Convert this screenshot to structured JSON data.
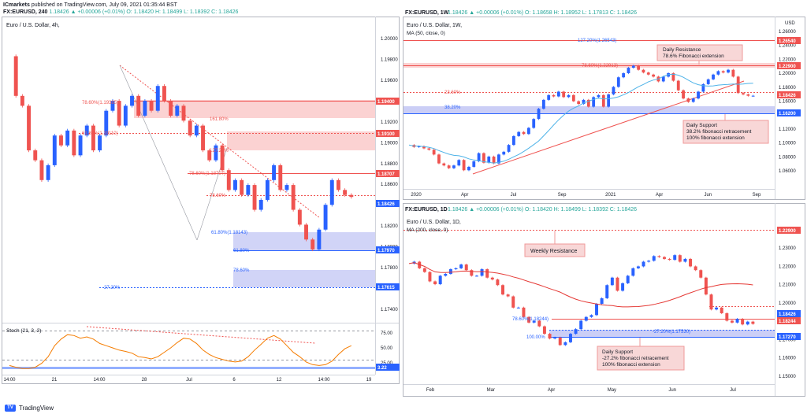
{
  "header": {
    "brand": "ICmarkets",
    "published": "published on TradingView.com, July 09, 2021 01:35:44 BST",
    "symbol_line": "FX:EURUSD, 240",
    "ohlc": "1.18426 ▲ +0.00006 (+0.01%) O: 1.18420 H: 1.18499 L: 1.18392 C: 1.18426"
  },
  "footer": {
    "logo": "TV",
    "label": "TradingView"
  },
  "panels": {
    "left": {
      "title": "Euro / U.S. Dollar, 4h,",
      "x_ticks": [
        "14:00",
        "21",
        "14:00",
        "28",
        "Jul",
        "6",
        "12",
        "14:00",
        "19"
      ],
      "y_ticks": [
        "1.20000",
        "1.19800",
        "1.19600",
        "1.19400",
        "1.19200",
        "1.19000",
        "1.18800",
        "1.18600",
        "1.18400",
        "1.18200",
        "1.18000",
        "1.17800",
        "1.17600",
        "1.17400"
      ],
      "price_tags": [
        {
          "value": "1.19400",
          "color": "#ef5350"
        },
        {
          "value": "1.19100",
          "color": "#ef5350"
        },
        {
          "value": "1.18707",
          "color": "#ef5350"
        },
        {
          "value": "1.18426",
          "color": "#2962ff"
        },
        {
          "value": "1.17970",
          "color": "#2962ff"
        },
        {
          "value": "1.17615",
          "color": "#2962ff"
        }
      ],
      "fib_labels": [
        "78.60%(1.19385)",
        "161.80%",
        "61.80%(1.19110)",
        "127.20%",
        "78.60%(1.18707)",
        "78.60%",
        "61.80%(1.18143)",
        "61.80%",
        "78.60%",
        "-27.20%"
      ],
      "stoch": {
        "label": "Stoch (21, 3, 3)",
        "y_ticks": [
          "75.00",
          "50.00",
          "25.00"
        ],
        "tag": "3.22"
      }
    },
    "top_right": {
      "symbol_line": "FX:EURUSD, 1W",
      "ohlc": "1.18426 ▲ +0.00006 (+0.01%) O: 1.18658 H: 1.18952 L: 1.17813 C: 1.18426",
      "title": "Euro / U.S. Dollar, 1W,",
      "ma_label": "MA (50, close, 0)",
      "x_ticks": [
        "2020",
        "Apr",
        "Jul",
        "Sep",
        "2021",
        "Apr",
        "Jun",
        "Sep"
      ],
      "y_ticks": [
        "1.26000",
        "1.24000",
        "1.22000",
        "1.20000",
        "1.18000",
        "1.16000",
        "1.14000",
        "1.12000",
        "1.10000",
        "1.08000",
        "1.06000"
      ],
      "axis_unit": "USD",
      "price_tags": [
        {
          "value": "1.26540",
          "color": "#ef5350"
        },
        {
          "value": "1.22900",
          "color": "#ef5350"
        },
        {
          "value": "1.18426",
          "color": "#ef5350"
        },
        {
          "value": "1.16200",
          "color": "#2962ff"
        }
      ],
      "fib_labels": [
        "127.20%(1.26543)",
        "78.60%(1.22913)",
        "23.60%",
        "38.20%"
      ],
      "callouts": [
        {
          "lines": [
            "Daily Resistance",
            "78.6% Fibonacci extension"
          ]
        },
        {
          "lines": [
            "Daily Support",
            "38.2% fibonacci retracement",
            "100% fibonacci extension"
          ]
        }
      ]
    },
    "bottom_right": {
      "symbol_line": "FX:EURUSD, 1D",
      "ohlc": "1.18426 ▲ +0.00006 (+0.01%) O: 1.18420 H: 1.18499 L: 1.18392 C: 1.18426",
      "title": "Euro / U.S. Dollar, 1D,",
      "ma_label": "MA (200, close, 0)",
      "x_ticks": [
        "Feb",
        "Mar",
        "Apr",
        "May",
        "Jun",
        "Jul"
      ],
      "y_ticks": [
        "1.23000",
        "1.22000",
        "1.21000",
        "1.20000",
        "1.19000",
        "1.17000",
        "1.16000",
        "1.15000"
      ],
      "price_tags": [
        {
          "value": "1.22900",
          "color": "#ef5350"
        },
        {
          "value": "1.18426",
          "color": "#2962ff"
        },
        {
          "value": "1.18244",
          "color": "#ef5350"
        },
        {
          "value": "1.17270",
          "color": "#2962ff"
        }
      ],
      "fib_labels": [
        "78.60%(1.18244)",
        "100.00%",
        "-27.20%(1.17530)"
      ],
      "callouts": [
        {
          "lines": [
            "Weekly Resistance"
          ]
        },
        {
          "lines": [
            "Daily Support",
            "-27.2% fibonacci retracement",
            "100% fibonacci extension"
          ]
        }
      ]
    }
  },
  "chart_data": [
    {
      "type": "candlestick",
      "title": "Euro / U.S. Dollar, 4h,",
      "ylim": [
        1.172,
        1.201
      ],
      "close_series": [
        1.1985,
        1.1945,
        1.1935,
        1.189,
        1.188,
        1.186,
        1.1875,
        1.1905,
        1.1895,
        1.191,
        1.1885,
        1.1905,
        1.1915,
        1.189,
        1.1905,
        1.193,
        1.194,
        1.1915,
        1.1935,
        1.1945,
        1.1925,
        1.194,
        1.193,
        1.1955,
        1.194,
        1.1925,
        1.1935,
        1.192,
        1.1905,
        1.1915,
        1.189,
        1.188,
        1.1895,
        1.187,
        1.185,
        1.186,
        1.1845,
        1.1855,
        1.183,
        1.184,
        1.186,
        1.1875,
        1.185,
        1.1855,
        1.183,
        1.1815,
        1.18,
        1.179,
        1.181,
        1.1835,
        1.186,
        1.185,
        1.1845,
        1.1843
      ],
      "stoch_series": [
        10,
        6,
        3,
        3,
        6,
        15,
        30,
        55,
        70,
        80,
        78,
        72,
        75,
        70,
        60,
        55,
        50,
        45,
        42,
        38,
        30,
        28,
        25,
        30,
        40,
        50,
        62,
        72,
        70,
        60,
        45,
        35,
        28,
        24,
        20,
        18,
        20,
        30,
        45,
        58,
        72,
        78,
        70,
        55,
        40,
        30,
        18,
        12,
        10,
        12,
        20,
        35,
        48,
        55
      ]
    },
    {
      "type": "candlestick",
      "title": "Euro / U.S. Dollar, 1W,",
      "ylim": [
        1.05,
        1.27
      ],
      "close_series": [
        1.112,
        1.109,
        1.11,
        1.107,
        1.105,
        1.098,
        1.085,
        1.082,
        1.078,
        1.082,
        1.09,
        1.075,
        1.08,
        1.088,
        1.1,
        1.086,
        1.095,
        1.085,
        1.098,
        1.102,
        1.112,
        1.125,
        1.131,
        1.128,
        1.137,
        1.15,
        1.165,
        1.178,
        1.185,
        1.183,
        1.19,
        1.182,
        1.185,
        1.176,
        1.172,
        1.178,
        1.168,
        1.182,
        1.185,
        1.168,
        1.186,
        1.197,
        1.211,
        1.217,
        1.225,
        1.228,
        1.222,
        1.218,
        1.215,
        1.212,
        1.205,
        1.212,
        1.217,
        1.206,
        1.192,
        1.18,
        1.175,
        1.18,
        1.19,
        1.201,
        1.208,
        1.215,
        1.22,
        1.218,
        1.222,
        1.212,
        1.188,
        1.186,
        1.184,
        1.184
      ]
    },
    {
      "type": "candlestick",
      "title": "Euro / U.S. Dollar, 1D,",
      "ylim": [
        1.153,
        1.232
      ],
      "close_series": [
        1.2165,
        1.2175,
        1.214,
        1.212,
        1.207,
        1.2055,
        1.21,
        1.211,
        1.2135,
        1.214,
        1.216,
        1.213,
        1.21,
        1.21,
        1.2135,
        1.209,
        1.208,
        1.205,
        1.2,
        1.199,
        1.193,
        1.193,
        1.188,
        1.185,
        1.186,
        1.183,
        1.179,
        1.1765,
        1.177,
        1.173,
        1.1745,
        1.179,
        1.1815,
        1.186,
        1.188,
        1.189,
        1.195,
        1.198,
        1.205,
        1.209,
        1.202,
        1.206,
        1.21,
        1.214,
        1.215,
        1.2175,
        1.218,
        1.2205,
        1.22,
        1.219,
        1.2185,
        1.221,
        1.2175,
        1.219,
        1.215,
        1.213,
        1.209,
        1.2,
        1.192,
        1.193,
        1.19,
        1.186,
        1.185,
        1.187,
        1.184,
        1.1855,
        1.1843
      ]
    }
  ]
}
